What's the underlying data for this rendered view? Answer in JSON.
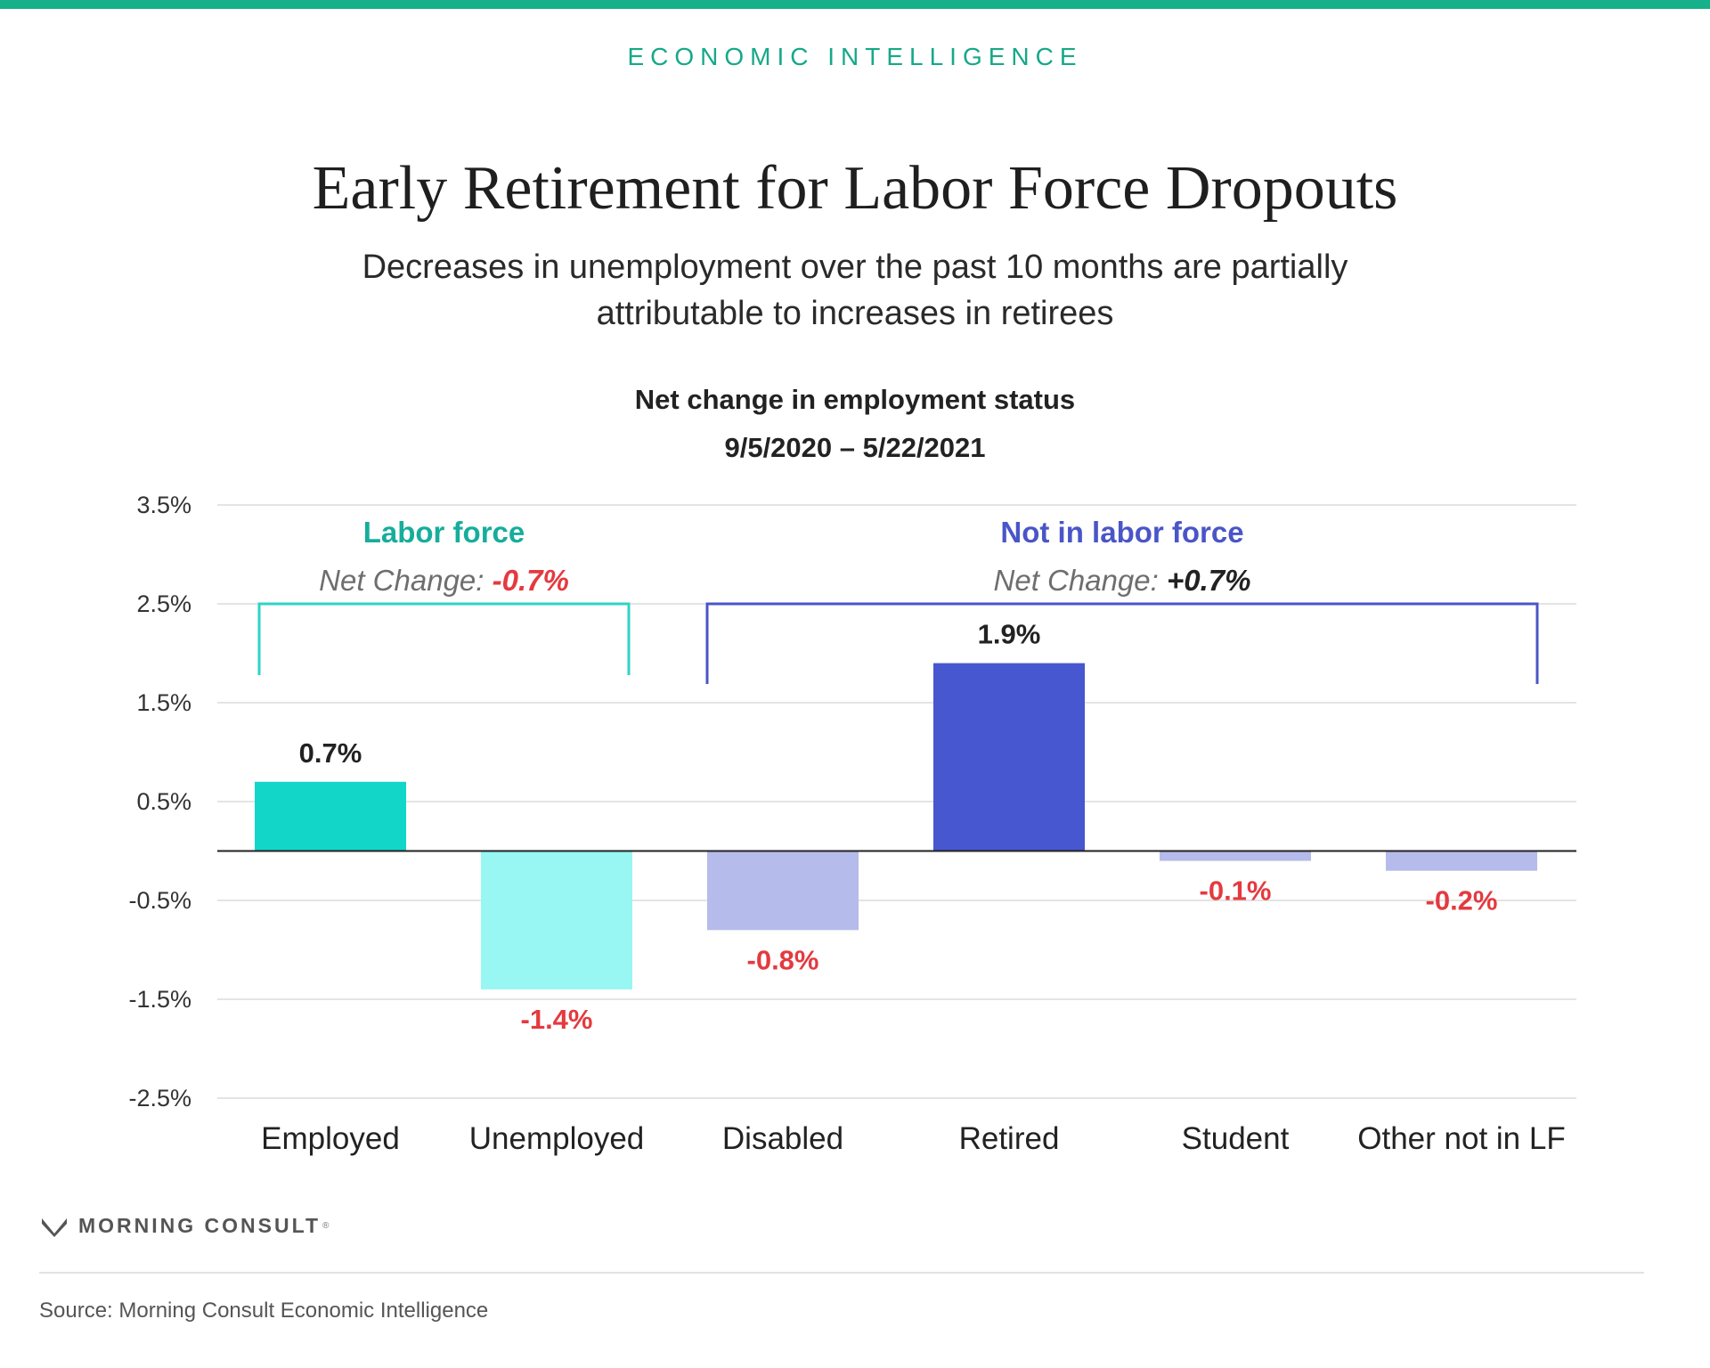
{
  "header": {
    "kicker": "ECONOMIC INTELLIGENCE",
    "title": "Early Retirement for Labor Force Dropouts",
    "subtitle": "Decreases in unemployment over the past 10 months are partially attributable to increases in retirees"
  },
  "chart_data": {
    "type": "bar",
    "title": "Net change in employment status",
    "subtitle": "9/5/2020 – 5/22/2021",
    "xlabel": "",
    "ylabel": "",
    "categories": [
      "Employed",
      "Unemployed",
      "Disabled",
      "Retired",
      "Student",
      "Other not in LF"
    ],
    "values": [
      0.7,
      -1.4,
      -0.8,
      1.9,
      -0.1,
      -0.2
    ],
    "value_labels": [
      "0.7%",
      "-1.4%",
      "-0.8%",
      "1.9%",
      "-0.1%",
      "-0.2%"
    ],
    "bar_colors": [
      "#12d6c8",
      "#98f7f2",
      "#b5bbea",
      "#4657cf",
      "#b5bbea",
      "#b5bbea"
    ],
    "label_colors": [
      "#222222",
      "#e43a3f",
      "#e43a3f",
      "#222222",
      "#e43a3f",
      "#e43a3f"
    ],
    "ylim": [
      -2.5,
      3.5
    ],
    "yticks": [
      3.5,
      2.5,
      1.5,
      0.5,
      -0.5,
      -1.5,
      -2.5
    ],
    "ytick_labels": [
      "3.5%",
      "2.5%",
      "1.5%",
      "0.5%",
      "-0.5%",
      "-1.5%",
      "-2.5%"
    ],
    "grid": true,
    "groups": [
      {
        "name": "Labor force",
        "net_change_label": "Net Change:",
        "net_change_value": "-0.7%",
        "color": "#16ad9c",
        "bracket_color": "#2fd3c6",
        "value_color": "#e43a3f",
        "first": 0,
        "last": 1
      },
      {
        "name": "Not in labor force",
        "net_change_label": "Net Change:",
        "net_change_value": "+0.7%",
        "color": "#4a55c8",
        "bracket_color": "#4a55c8",
        "value_color": "#222222",
        "first": 2,
        "last": 5
      }
    ]
  },
  "branding": {
    "name": "MORNING CONSULT",
    "mark": "®"
  },
  "footer": {
    "source": "Source: Morning Consult Economic Intelligence"
  }
}
